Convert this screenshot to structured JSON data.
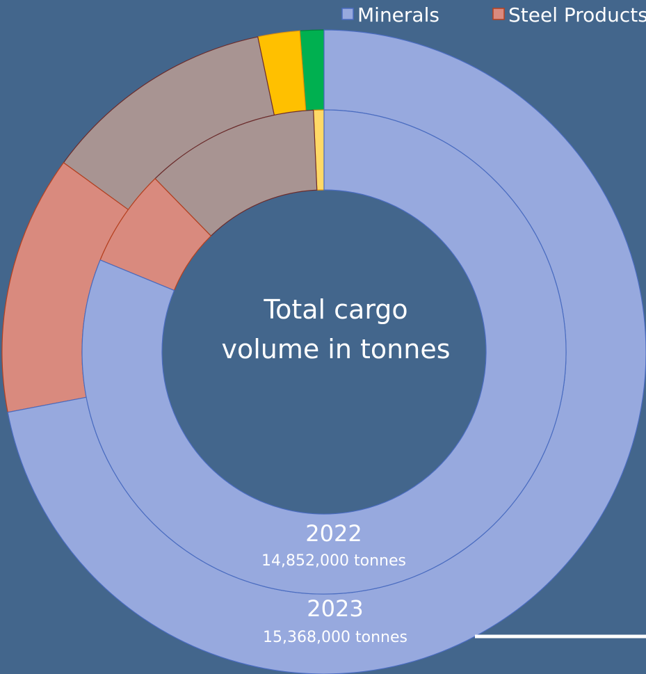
{
  "chart_data": {
    "type": "donut",
    "title_lines": [
      "Total cargo",
      "volume in tonnes"
    ],
    "categories": [
      "Minerals",
      "Steel Products",
      null,
      null,
      null
    ],
    "colors": [
      "#97a9de",
      "#d98a7e",
      "#a89492",
      "#ffc000",
      "#00b050"
    ],
    "inner_colors": [
      "#97a9de",
      "#d98a7e",
      "#a89492",
      "#ffd966",
      "#00b050"
    ],
    "legend": "top-right",
    "series": [
      {
        "name": "2022",
        "label": "14,852,000 tonnes",
        "values": [
          81.2,
          6.5,
          11.6,
          0.7,
          0
        ]
      },
      {
        "name": "2023",
        "label": "15,368,000 tonnes",
        "values": [
          72.0,
          13.0,
          11.7,
          2.1,
          1.2
        ]
      }
    ]
  }
}
